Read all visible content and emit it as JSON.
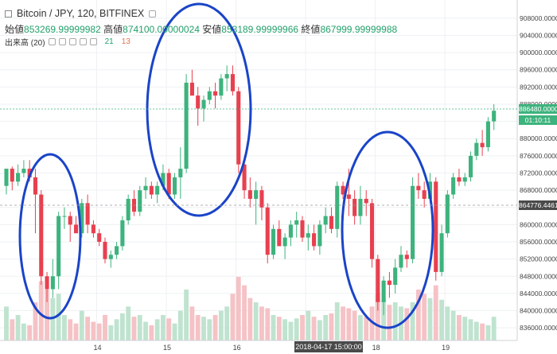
{
  "header": {
    "symbol": "Bitcoin / JPY, 120, BITFINEX",
    "ohlc": [
      {
        "label": "始値",
        "value": "853269.99999982"
      },
      {
        "label": "高値",
        "value": "874100.00000024"
      },
      {
        "label": "安値",
        "value": "853189.99999966"
      },
      {
        "label": "終値",
        "value": "867999.99999988"
      }
    ],
    "volume_label": "出来高 (20)",
    "volume_up": "21",
    "volume_down": "13"
  },
  "colors": {
    "up": "#3db37d",
    "down": "#e8404f",
    "vol_up": "#bfe3cf",
    "vol_down": "#f5c2c6",
    "annotation": "#1a44c8",
    "grid": "#eef0f3"
  },
  "price_labels": {
    "current": "886480.00000027",
    "countdown": "01:10:11",
    "crosshair": "864776.44614743"
  },
  "date_label": "2018-04-17 15:00:00",
  "chart_data": {
    "type": "candlestick",
    "y_ticks": [
      "908000.00000000",
      "904000.00000000",
      "900000.00000000",
      "896000.00000000",
      "892000.00000000",
      "888000.00000000",
      "884000.00000000",
      "880000.00000000",
      "876000.00000000",
      "872000.00000000",
      "868000.00000000",
      "864000.00000000",
      "860000.00000000",
      "856000.00000000",
      "852000.00000000",
      "848000.00000000",
      "844000.00000000",
      "840000.00000000",
      "836000.00000000"
    ],
    "x_ticks": [
      "14",
      "15",
      "16",
      "17",
      "18",
      "19"
    ],
    "ylim": [
      834000,
      910000
    ],
    "candles": [
      [
        869000,
        873000,
        867000,
        873000
      ],
      [
        873000,
        873500,
        868000,
        870000
      ],
      [
        870000,
        874000,
        869000,
        872000
      ],
      [
        872000,
        875000,
        871000,
        873000
      ],
      [
        873000,
        875000,
        870000,
        871000
      ],
      [
        871000,
        873000,
        858000,
        867000
      ],
      [
        867000,
        868000,
        846000,
        848000
      ],
      [
        848000,
        849000,
        842000,
        845000
      ],
      [
        845000,
        852000,
        843000,
        848000
      ],
      [
        848000,
        863000,
        845000,
        862000
      ],
      [
        862000,
        864000,
        859000,
        862000
      ],
      [
        862000,
        863000,
        856000,
        860000
      ],
      [
        860000,
        862000,
        858000,
        858000
      ],
      [
        858000,
        866000,
        857000,
        865000
      ],
      [
        865000,
        867000,
        858000,
        860000
      ],
      [
        860000,
        861000,
        857000,
        858000
      ],
      [
        858000,
        859000,
        855000,
        856000
      ],
      [
        856000,
        857000,
        851000,
        852000
      ],
      [
        852000,
        854000,
        850000,
        853000
      ],
      [
        853000,
        856000,
        852000,
        855000
      ],
      [
        855000,
        862000,
        854000,
        861000
      ],
      [
        861000,
        867000,
        860000,
        866000
      ],
      [
        866000,
        868000,
        862000,
        863000
      ],
      [
        863000,
        869000,
        862000,
        868000
      ],
      [
        868000,
        871000,
        866000,
        869000
      ],
      [
        869000,
        870000,
        866000,
        867000
      ],
      [
        867000,
        870000,
        865000,
        869000
      ],
      [
        869000,
        874000,
        868000,
        872000
      ],
      [
        872000,
        873000,
        866000,
        867000
      ],
      [
        867000,
        872000,
        866000,
        871000
      ],
      [
        871000,
        878000,
        866000,
        873000
      ],
      [
        873000,
        895000,
        872000,
        893000
      ],
      [
        893000,
        896000,
        890000,
        890000
      ],
      [
        890000,
        892000,
        883000,
        887000
      ],
      [
        887000,
        890000,
        884000,
        889000
      ],
      [
        889000,
        892000,
        888000,
        891000
      ],
      [
        891000,
        893000,
        887000,
        890000
      ],
      [
        890000,
        895000,
        889000,
        894000
      ],
      [
        894000,
        897000,
        891000,
        895000
      ],
      [
        895000,
        897000,
        890000,
        891000
      ],
      [
        891000,
        892000,
        872000,
        874000
      ],
      [
        874000,
        876000,
        866000,
        868000
      ],
      [
        868000,
        871000,
        864000,
        866000
      ],
      [
        866000,
        870000,
        860000,
        868000
      ],
      [
        868000,
        869000,
        861000,
        864000
      ],
      [
        864000,
        865000,
        851000,
        853000
      ],
      [
        853000,
        860000,
        852000,
        859000
      ],
      [
        859000,
        861000,
        855000,
        855000
      ],
      [
        855000,
        858000,
        852000,
        857000
      ],
      [
        857000,
        861000,
        855000,
        860000
      ],
      [
        860000,
        863000,
        857000,
        861000
      ],
      [
        861000,
        862000,
        856000,
        857000
      ],
      [
        857000,
        860000,
        854000,
        858000
      ],
      [
        858000,
        860000,
        854000,
        855000
      ],
      [
        855000,
        861000,
        853000,
        860000
      ],
      [
        860000,
        864000,
        858000,
        862000
      ],
      [
        862000,
        864000,
        858000,
        859000
      ],
      [
        859000,
        870000,
        857000,
        869000
      ],
      [
        869000,
        870000,
        866000,
        867000
      ],
      [
        867000,
        873000,
        862000,
        866000
      ],
      [
        866000,
        868000,
        860000,
        862000
      ],
      [
        862000,
        869000,
        860000,
        866000
      ],
      [
        866000,
        868000,
        862000,
        865000
      ],
      [
        865000,
        866000,
        850000,
        852000
      ],
      [
        852000,
        853000,
        840000,
        842000
      ],
      [
        842000,
        848000,
        839000,
        847000
      ],
      [
        847000,
        849000,
        843000,
        846000
      ],
      [
        846000,
        852000,
        844000,
        850000
      ],
      [
        850000,
        855000,
        849000,
        853000
      ],
      [
        853000,
        854000,
        850000,
        852000
      ],
      [
        852000,
        871000,
        851000,
        869000
      ],
      [
        869000,
        872000,
        866000,
        868000
      ],
      [
        868000,
        870000,
        864000,
        866000
      ],
      [
        866000,
        872000,
        865000,
        870000
      ],
      [
        870000,
        871000,
        847000,
        849000
      ],
      [
        849000,
        860000,
        848000,
        858000
      ],
      [
        858000,
        868000,
        857000,
        867000
      ],
      [
        867000,
        872000,
        866000,
        871000
      ],
      [
        871000,
        873000,
        869000,
        870000
      ],
      [
        870000,
        872000,
        869000,
        871000
      ],
      [
        871000,
        877000,
        870000,
        876000
      ],
      [
        876000,
        880000,
        875000,
        879000
      ],
      [
        879000,
        882000,
        876000,
        878000
      ],
      [
        878000,
        885000,
        877000,
        884000
      ],
      [
        884000,
        888000,
        882000,
        886480
      ]
    ],
    "volumes": [
      40,
      25,
      30,
      20,
      18,
      45,
      70,
      60,
      50,
      55,
      30,
      25,
      20,
      35,
      28,
      22,
      20,
      30,
      18,
      25,
      32,
      40,
      28,
      30,
      22,
      18,
      25,
      30,
      26,
      20,
      35,
      60,
      40,
      30,
      28,
      25,
      30,
      35,
      40,
      55,
      75,
      65,
      50,
      45,
      40,
      38,
      30,
      28,
      25,
      22,
      26,
      30,
      35,
      28,
      24,
      30,
      32,
      45,
      40,
      38,
      35,
      30,
      28,
      40,
      55,
      48,
      42,
      45,
      40,
      38,
      45,
      60,
      55,
      50,
      65,
      48,
      40,
      35,
      30,
      28,
      25,
      22,
      20,
      18,
      28
    ]
  }
}
